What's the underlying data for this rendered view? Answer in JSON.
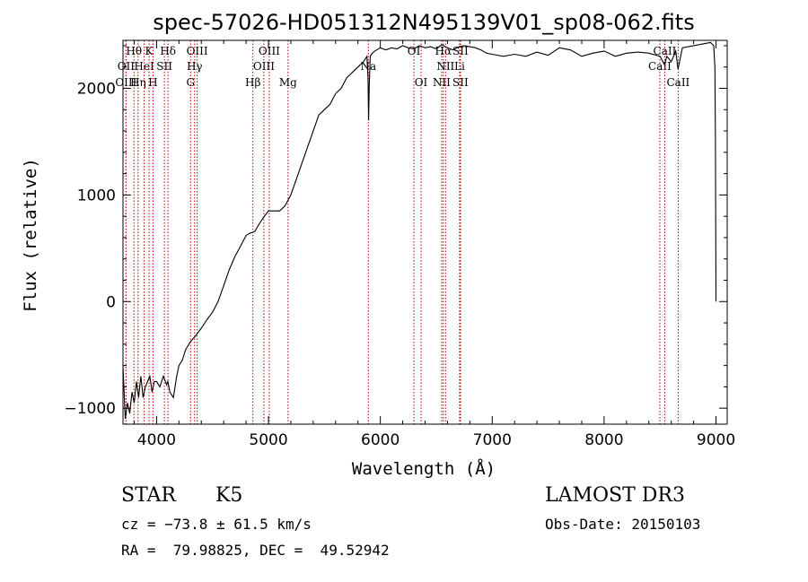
{
  "chart_data": {
    "type": "line",
    "title": "spec-57026-HD051312N495139V01_sp08-062.fits",
    "xlabel": "Wavelength (Å)",
    "ylabel": "Flux (relative)",
    "xlim": [
      3700,
      9100
    ],
    "ylim": [
      -1150,
      2450
    ],
    "xticks": [
      4000,
      5000,
      6000,
      7000,
      8000,
      9000
    ],
    "yticks": [
      -1000,
      0,
      1000,
      2000
    ],
    "series": [
      {
        "name": "spectrum",
        "x": [
          3700,
          3720,
          3740,
          3760,
          3780,
          3800,
          3820,
          3840,
          3860,
          3880,
          3900,
          3920,
          3940,
          3960,
          3980,
          4000,
          4030,
          4060,
          4090,
          4100,
          4120,
          4150,
          4180,
          4200,
          4230,
          4260,
          4300,
          4350,
          4400,
          4450,
          4500,
          4550,
          4600,
          4650,
          4700,
          4750,
          4800,
          4830,
          4860,
          4880,
          4900,
          4950,
          5000,
          5050,
          5100,
          5150,
          5200,
          5250,
          5300,
          5350,
          5400,
          5450,
          5500,
          5550,
          5600,
          5650,
          5700,
          5750,
          5800,
          5850,
          5880,
          5890,
          5895,
          5900,
          5910,
          5920,
          5950,
          6000,
          6050,
          6100,
          6150,
          6200,
          6250,
          6300,
          6350,
          6400,
          6450,
          6500,
          6550,
          6600,
          6650,
          6700,
          6750,
          6800,
          6850,
          6900,
          6950,
          7000,
          7100,
          7200,
          7300,
          7400,
          7500,
          7600,
          7700,
          7800,
          7900,
          8000,
          8100,
          8200,
          8300,
          8400,
          8500,
          8540,
          8560,
          8600,
          8640,
          8660,
          8700,
          8800,
          8900,
          8950,
          8980,
          8990,
          8995,
          9000
        ],
        "y": [
          -600,
          -1100,
          -950,
          -1050,
          -850,
          -950,
          -750,
          -900,
          -700,
          -900,
          -800,
          -750,
          -700,
          -850,
          -750,
          -750,
          -800,
          -700,
          -780,
          -750,
          -850,
          -900,
          -700,
          -600,
          -550,
          -450,
          -380,
          -320,
          -250,
          -170,
          -100,
          0,
          150,
          300,
          420,
          520,
          620,
          640,
          650,
          660,
          700,
          780,
          850,
          850,
          850,
          900,
          1000,
          1150,
          1300,
          1450,
          1600,
          1750,
          1800,
          1850,
          1950,
          2000,
          2100,
          2150,
          2200,
          2250,
          2300,
          2100,
          1700,
          2000,
          2300,
          2320,
          2350,
          2380,
          2360,
          2380,
          2370,
          2400,
          2380,
          2370,
          2400,
          2380,
          2390,
          2370,
          2410,
          2380,
          2360,
          2390,
          2400,
          2390,
          2380,
          2360,
          2330,
          2320,
          2300,
          2320,
          2300,
          2340,
          2310,
          2380,
          2360,
          2300,
          2330,
          2350,
          2300,
          2330,
          2340,
          2330,
          2300,
          2220,
          2300,
          2250,
          2350,
          2180,
          2380,
          2400,
          2420,
          2430,
          2400,
          2200,
          1500,
          0
        ]
      }
    ],
    "lines": [
      {
        "label": "Hθ",
        "x": 3798,
        "row": 1
      },
      {
        "label": "OII",
        "x": 3727,
        "row": 2
      },
      {
        "label": "OIII",
        "x": 3727,
        "row": 3
      },
      {
        "label": "Hη",
        "x": 3835,
        "row": 3
      },
      {
        "label": "HeI",
        "x": 3889,
        "row": 2
      },
      {
        "label": "K",
        "x": 3933,
        "row": 1
      },
      {
        "label": "H",
        "x": 3968,
        "row": 3
      },
      {
        "label": "SII",
        "x": 4070,
        "row": 2
      },
      {
        "label": "Hδ",
        "x": 4102,
        "row": 1
      },
      {
        "label": "G",
        "x": 4304,
        "row": 3
      },
      {
        "label": "Hγ",
        "x": 4340,
        "row": 2
      },
      {
        "label": "OIII",
        "x": 4363,
        "row": 1
      },
      {
        "label": "Hβ",
        "x": 4861,
        "row": 3
      },
      {
        "label": "OIII",
        "x": 4959,
        "row": 2
      },
      {
        "label": "OIII",
        "x": 5007,
        "row": 1
      },
      {
        "label": "Mg",
        "x": 5175,
        "row": 3
      },
      {
        "label": "Na",
        "x": 5893,
        "row": 2
      },
      {
        "label": "OI",
        "x": 6300,
        "row": 1
      },
      {
        "label": "OI",
        "x": 6364,
        "row": 3
      },
      {
        "label": "NII",
        "x": 6548,
        "row": 3
      },
      {
        "label": "Hα",
        "x": 6563,
        "row": 1
      },
      {
        "label": "NII",
        "x": 6583,
        "row": 2
      },
      {
        "label": "SII",
        "x": 6716,
        "row": 3
      },
      {
        "label": "SII",
        "x": 6716,
        "row": 1
      },
      {
        "label": "Li",
        "x": 6708,
        "row": 2
      },
      {
        "label": "CaII",
        "x": 8498,
        "row": 2
      },
      {
        "label": "CaII",
        "x": 8542,
        "row": 1
      },
      {
        "label": "CaII",
        "x": 8662,
        "row": 3
      }
    ]
  },
  "info": {
    "class": "STAR",
    "subclass": "K5",
    "survey": "LAMOST DR3",
    "cz": "cz = −73.8 ± 61.5 km/s",
    "obs_date": "Obs-Date: 20150103",
    "radec": "RA =  79.98825, DEC =  49.52942"
  }
}
